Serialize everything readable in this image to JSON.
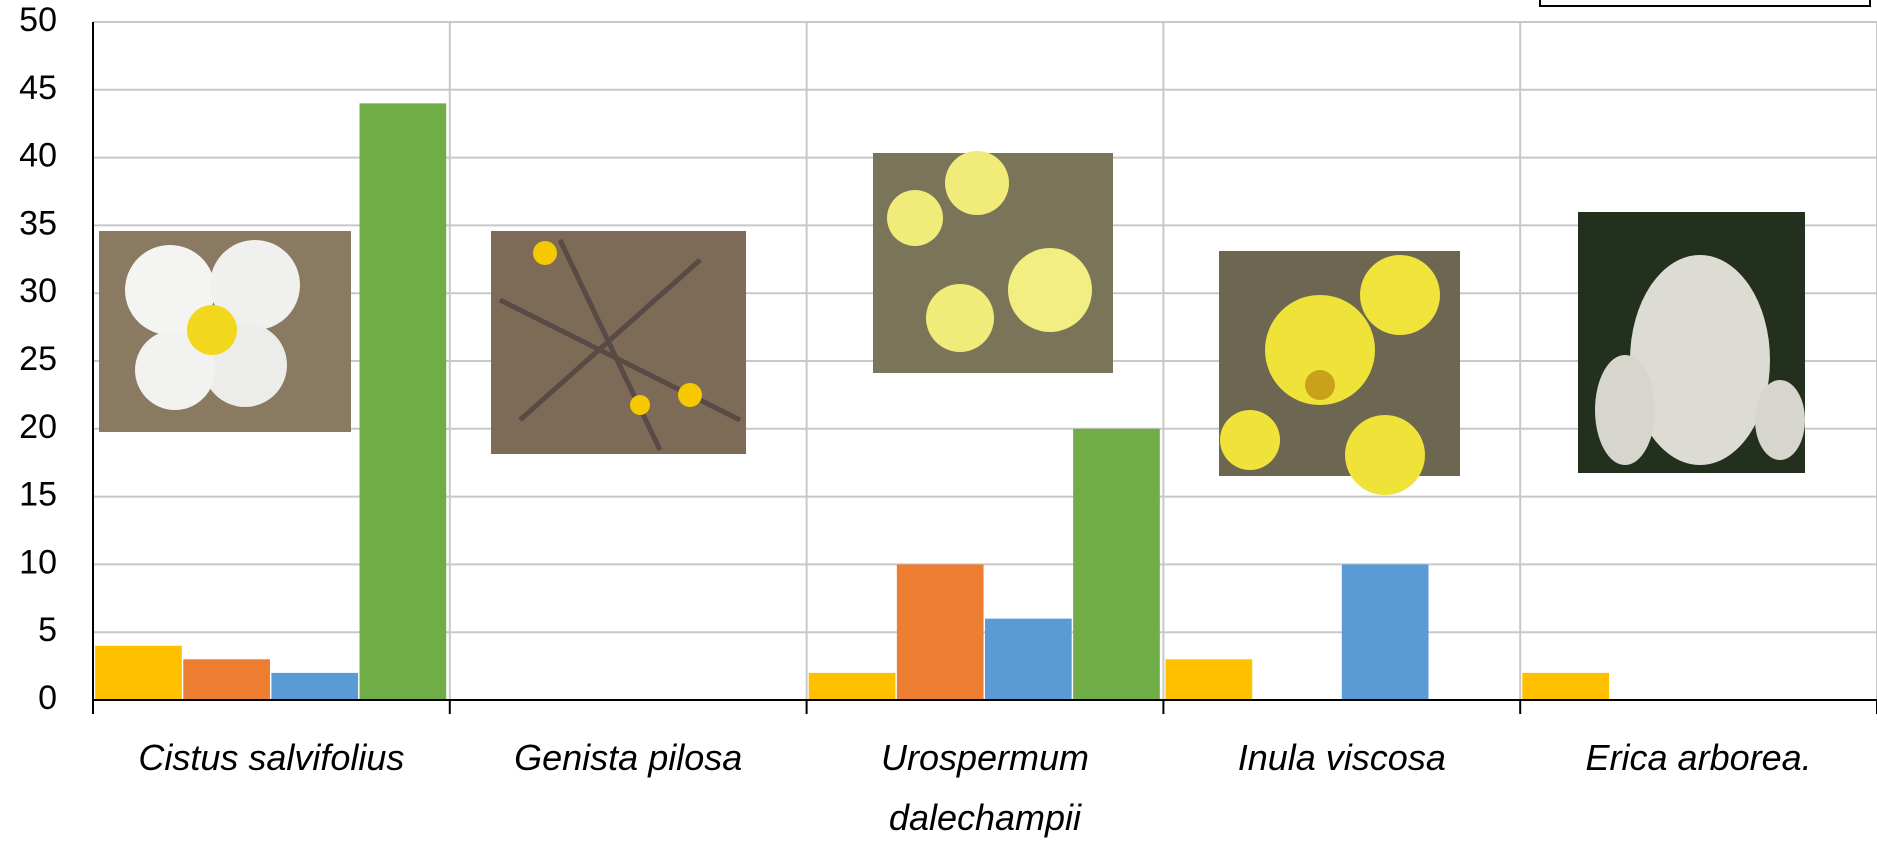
{
  "chart_data": {
    "type": "bar",
    "categories": [
      "Cistus salvifolius",
      "Genista pilosa",
      "Urospermum dalechampii",
      "Inula viscosa",
      "Erica arborea."
    ],
    "series": [
      {
        "color": "#ffc000",
        "values": [
          4,
          0,
          2,
          3,
          2
        ]
      },
      {
        "color": "#ed7d31",
        "values": [
          3,
          0,
          10,
          0,
          0
        ]
      },
      {
        "color": "#5b9bd5",
        "values": [
          2,
          0,
          6,
          10,
          0
        ]
      },
      {
        "color": "#70ad47",
        "values": [
          44,
          0,
          20,
          0,
          0
        ]
      }
    ],
    "ylim": [
      0,
      50
    ],
    "yticks": [
      0,
      5,
      10,
      15,
      20,
      25,
      30,
      35,
      40,
      45,
      50
    ],
    "grid": true
  }
}
